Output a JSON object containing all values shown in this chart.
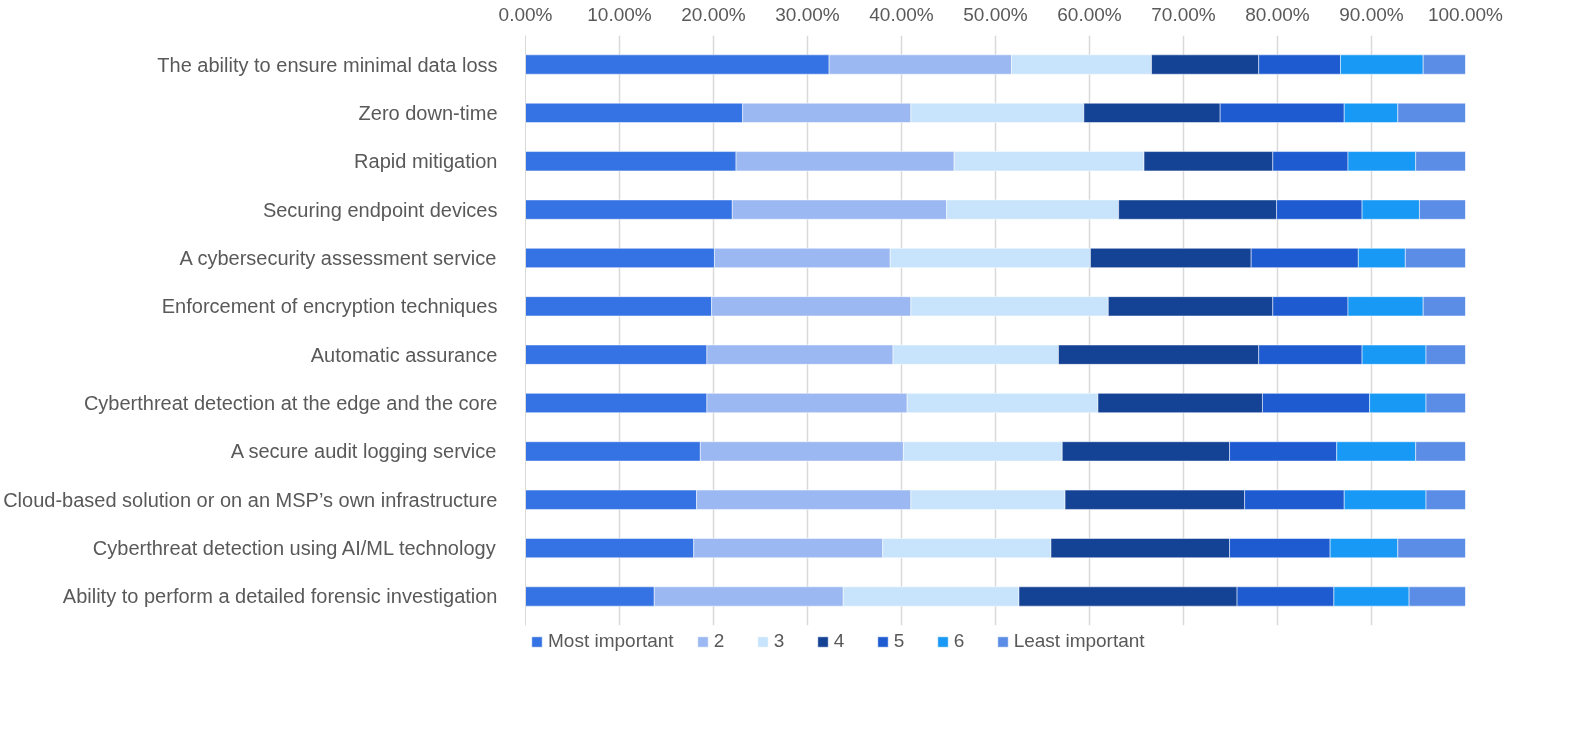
{
  "chart_data": {
    "type": "bar",
    "orientation": "horizontal",
    "stacked": true,
    "categories": [
      "The ability to ensure minimal data loss",
      "Zero down-time",
      "Rapid mitigation",
      "Securing endpoint devices",
      "A cybersecurity assessment service",
      "Enforcement of encryption techniques",
      "Automatic assurance",
      "Cyberthreat detection at the edge and the core",
      "A secure audit logging service",
      "Cloud-based solution or on an MSP’s own infrastructure",
      "Cyberthreat detection using AI/ML technology",
      "Ability to perform a detailed forensic investigation"
    ],
    "series": [
      {
        "name": "Most important",
        "color": "#3572e3",
        "values": [
          32.3,
          23.1,
          22.4,
          22.0,
          20.1,
          19.8,
          19.3,
          19.3,
          18.6,
          18.2,
          17.9,
          13.7
        ]
      },
      {
        "name": "2",
        "color": "#9bb8f2",
        "values": [
          19.4,
          17.9,
          23.2,
          22.8,
          18.7,
          21.2,
          19.8,
          21.3,
          21.6,
          22.8,
          20.1,
          20.1
        ]
      },
      {
        "name": "3",
        "color": "#c8e4fc",
        "values": [
          14.9,
          18.4,
          20.2,
          18.3,
          21.3,
          21.0,
          17.6,
          20.3,
          16.9,
          16.4,
          17.9,
          18.7
        ]
      },
      {
        "name": "4",
        "color": "#144294",
        "values": [
          11.4,
          14.5,
          13.7,
          16.8,
          17.1,
          17.5,
          21.3,
          17.5,
          17.8,
          19.1,
          19.0,
          23.2
        ]
      },
      {
        "name": "5",
        "color": "#1e5bd1",
        "values": [
          8.7,
          13.2,
          8.0,
          9.1,
          11.4,
          8.0,
          11.0,
          11.4,
          11.4,
          10.6,
          10.7,
          10.3
        ]
      },
      {
        "name": "6",
        "color": "#1899f5",
        "values": [
          8.8,
          5.7,
          7.2,
          6.1,
          5.0,
          8.0,
          6.8,
          6.0,
          8.4,
          8.7,
          7.2,
          8.0
        ]
      },
      {
        "name": "Least important",
        "color": "#5b8ce6",
        "values": [
          4.5,
          7.2,
          5.3,
          4.9,
          6.4,
          4.5,
          4.2,
          4.2,
          5.3,
          4.2,
          7.2,
          6.0
        ]
      }
    ],
    "xlim": [
      0,
      100
    ],
    "xticks": [
      {
        "value": 0,
        "label": "0.00%"
      },
      {
        "value": 10,
        "label": "10.00%"
      },
      {
        "value": 20,
        "label": "20.00%"
      },
      {
        "value": 30,
        "label": "30.00%"
      },
      {
        "value": 40,
        "label": "40.00%"
      },
      {
        "value": 50,
        "label": "50.00%"
      },
      {
        "value": 60,
        "label": "60.00%"
      },
      {
        "value": 70,
        "label": "70.00%"
      },
      {
        "value": 80,
        "label": "80.00%"
      },
      {
        "value": 90,
        "label": "90.00%"
      },
      {
        "value": 100,
        "label": "100.00%"
      }
    ],
    "grid": "x",
    "legend": "bottom"
  }
}
